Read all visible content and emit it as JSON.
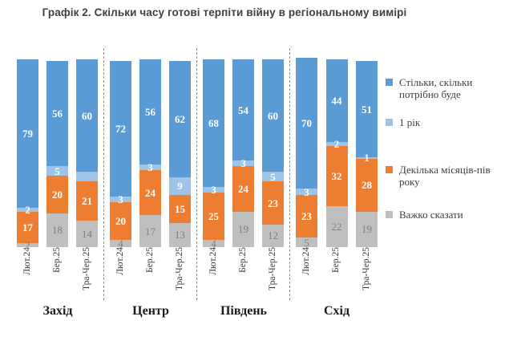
{
  "title": "Графік 2. Скільки часу готові терпіти війну в регіональному вимірі",
  "legend": {
    "items": [
      {
        "label": "Стільки, скільки потрібно буде",
        "color": "#5B9BD5"
      },
      {
        "label": "1 рік",
        "color": "#9DC3E6"
      },
      {
        "label": "Декілька місяців-пів року",
        "color": "#ED7D31"
      },
      {
        "label": "Важко сказати",
        "color": "#BFBFBF"
      }
    ]
  },
  "chart_data": {
    "type": "bar",
    "stacked": true,
    "value_unit": "percent",
    "ylim": [
      0,
      100
    ],
    "grid": false,
    "legend_position": "right",
    "categories": [
      "Лют.24",
      "Бер.25",
      "Тра-Чер.25"
    ],
    "series": [
      {
        "key": "as-long-as-needed",
        "name": "Стільки, скільки потрібно буде",
        "color": "#5B9BD5",
        "label_color": "#FFFFFF"
      },
      {
        "key": "one-year",
        "name": "1 рік",
        "color": "#9DC3E6",
        "label_color": "#FFFFFF"
      },
      {
        "key": "few-months-half-year",
        "name": "Декілька місяців-пів року",
        "color": "#ED7D31",
        "label_color": "#FFFFFF"
      },
      {
        "key": "hard-to-say",
        "name": "Важко сказати",
        "color": "#BFBFBF",
        "label_color": "#7F7F7F"
      }
    ],
    "series_note": "values arrays are ordered top-to-bottom of each bar: [Стільки скільки потрібно буде, 1 рік, Декілька місяців-пів року, Важко сказати]",
    "groups": [
      {
        "region": "Захід",
        "bars": [
          {
            "category": "Лют.24",
            "values": [
              79,
              2,
              17,
              2
            ]
          },
          {
            "category": "Бер.25",
            "values": [
              56,
              5,
              20,
              18
            ]
          },
          {
            "category": "Тра-Чер.25",
            "values": [
              60,
              5,
              21,
              14
            ],
            "unlabeled": [
              1
            ]
          }
        ]
      },
      {
        "region": "Центр",
        "bars": [
          {
            "category": "Лют.24",
            "values": [
              72,
              3,
              20,
              4
            ]
          },
          {
            "category": "Бер.25",
            "values": [
              56,
              3,
              24,
              17
            ]
          },
          {
            "category": "Тра-Чер.25",
            "values": [
              62,
              9,
              15,
              13
            ]
          }
        ]
      },
      {
        "region": "Південь",
        "bars": [
          {
            "category": "Лют.24",
            "values": [
              68,
              3,
              25,
              4
            ]
          },
          {
            "category": "Бер.25",
            "values": [
              54,
              3,
              24,
              19
            ]
          },
          {
            "category": "Тра-Чер.25",
            "values": [
              60,
              5,
              23,
              12
            ]
          }
        ]
      },
      {
        "region": "Схід",
        "bars": [
          {
            "category": "Лют.24",
            "values": [
              70,
              3,
              23,
              5
            ]
          },
          {
            "category": "Бер.25",
            "values": [
              44,
              2,
              32,
              22
            ]
          },
          {
            "category": "Тра-Чер.25",
            "values": [
              51,
              1,
              28,
              19
            ]
          }
        ]
      }
    ]
  }
}
